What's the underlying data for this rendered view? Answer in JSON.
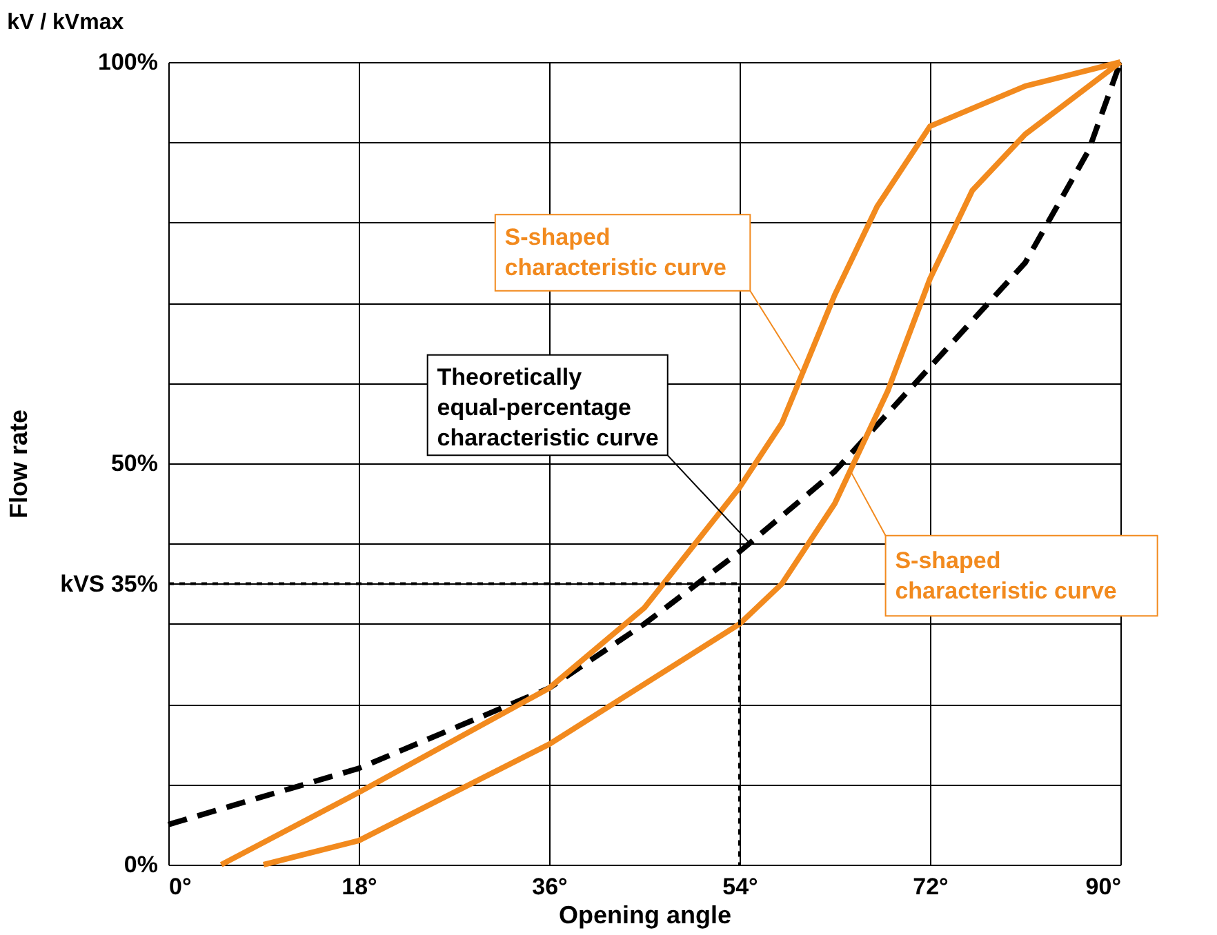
{
  "chart_data": {
    "type": "line",
    "title": "kV / kVmax",
    "xlabel": "Opening angle",
    "ylabel": "Flow rate",
    "xlim": [
      0,
      90
    ],
    "ylim": [
      0,
      100
    ],
    "xticks": [
      {
        "value": 0,
        "label": "0°"
      },
      {
        "value": 18,
        "label": "18°"
      },
      {
        "value": 36,
        "label": "36°"
      },
      {
        "value": 54,
        "label": "54°"
      },
      {
        "value": 72,
        "label": "72°"
      },
      {
        "value": 90,
        "label": "90°"
      }
    ],
    "yticks": [
      {
        "value": 0,
        "label": "0%"
      },
      {
        "value": 10,
        "label": null
      },
      {
        "value": 20,
        "label": null
      },
      {
        "value": 30,
        "label": null
      },
      {
        "value": 35,
        "label": "kVS 35%"
      },
      {
        "value": 40,
        "label": null
      },
      {
        "value": 50,
        "label": "50%"
      },
      {
        "value": 60,
        "label": null
      },
      {
        "value": 70,
        "label": null
      },
      {
        "value": 80,
        "label": null
      },
      {
        "value": 90,
        "label": null
      },
      {
        "value": 100,
        "label": "100%"
      }
    ],
    "grid": true,
    "series": [
      {
        "color": "#000000",
        "line_style": "dashed",
        "x": [
          0,
          18,
          36,
          45,
          54,
          63,
          72,
          81,
          87,
          90
        ],
        "values": [
          5,
          12,
          22,
          30,
          39,
          49,
          62,
          75,
          89,
          100
        ]
      },
      {
        "color": "#f28a1e",
        "line_style": "solid",
        "x": [
          5,
          18,
          36,
          45,
          54,
          58,
          63,
          67,
          72,
          81,
          90
        ],
        "values": [
          0,
          9,
          22,
          32,
          47,
          55,
          71,
          82,
          92,
          97,
          100
        ]
      },
      {
        "color": "#f28a1e",
        "line_style": "solid",
        "x": [
          9,
          18,
          36,
          54,
          58,
          63,
          68,
          72,
          76,
          81,
          90
        ],
        "values": [
          0,
          3,
          15,
          30,
          35,
          45,
          59,
          73,
          84,
          91,
          100
        ]
      },
      {
        "color": "#000000",
        "line_style": "dotted",
        "x": [
          0,
          54,
          54
        ],
        "values": [
          35,
          35,
          0
        ]
      }
    ],
    "annotations": [
      {
        "text": "S-shaped\ncharacteristic curve",
        "x": 60,
        "y": 61
      },
      {
        "text": "Theoretically\nequal-percentage\ncharacteristic curve",
        "x": 55,
        "y": 40
      },
      {
        "text": "S-shaped\ncharacteristic curve",
        "x": 64.5,
        "y": 49
      }
    ]
  }
}
